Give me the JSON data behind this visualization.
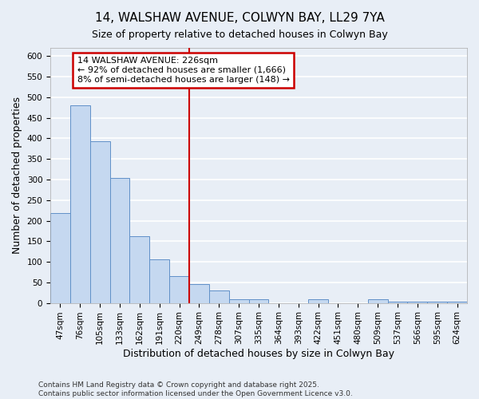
{
  "title1": "14, WALSHAW AVENUE, COLWYN BAY, LL29 7YA",
  "title2": "Size of property relative to detached houses in Colwyn Bay",
  "xlabel": "Distribution of detached houses by size in Colwyn Bay",
  "ylabel": "Number of detached properties",
  "categories": [
    "47sqm",
    "76sqm",
    "105sqm",
    "133sqm",
    "162sqm",
    "191sqm",
    "220sqm",
    "249sqm",
    "278sqm",
    "307sqm",
    "335sqm",
    "364sqm",
    "393sqm",
    "422sqm",
    "451sqm",
    "480sqm",
    "509sqm",
    "537sqm",
    "566sqm",
    "595sqm",
    "624sqm"
  ],
  "values": [
    218,
    480,
    393,
    303,
    163,
    105,
    65,
    46,
    30,
    8,
    8,
    0,
    0,
    8,
    0,
    0,
    8,
    3,
    3,
    3,
    3
  ],
  "bar_color": "#c5d8f0",
  "bar_edge_color": "#6090c8",
  "background_color": "#e8eef6",
  "grid_color": "#ffffff",
  "red_line_color": "#cc0000",
  "annotation_text": "14 WALSHAW AVENUE: 226sqm\n← 92% of detached houses are smaller (1,666)\n8% of semi-detached houses are larger (148) →",
  "annotation_box_color": "#cc0000",
  "ylim": [
    0,
    620
  ],
  "yticks": [
    0,
    50,
    100,
    150,
    200,
    250,
    300,
    350,
    400,
    450,
    500,
    550,
    600
  ],
  "footer1": "Contains HM Land Registry data © Crown copyright and database right 2025.",
  "footer2": "Contains public sector information licensed under the Open Government Licence v3.0.",
  "title1_fontsize": 11,
  "title2_fontsize": 9,
  "axis_label_fontsize": 9,
  "tick_fontsize": 7.5,
  "annotation_fontsize": 8,
  "footer_fontsize": 6.5
}
